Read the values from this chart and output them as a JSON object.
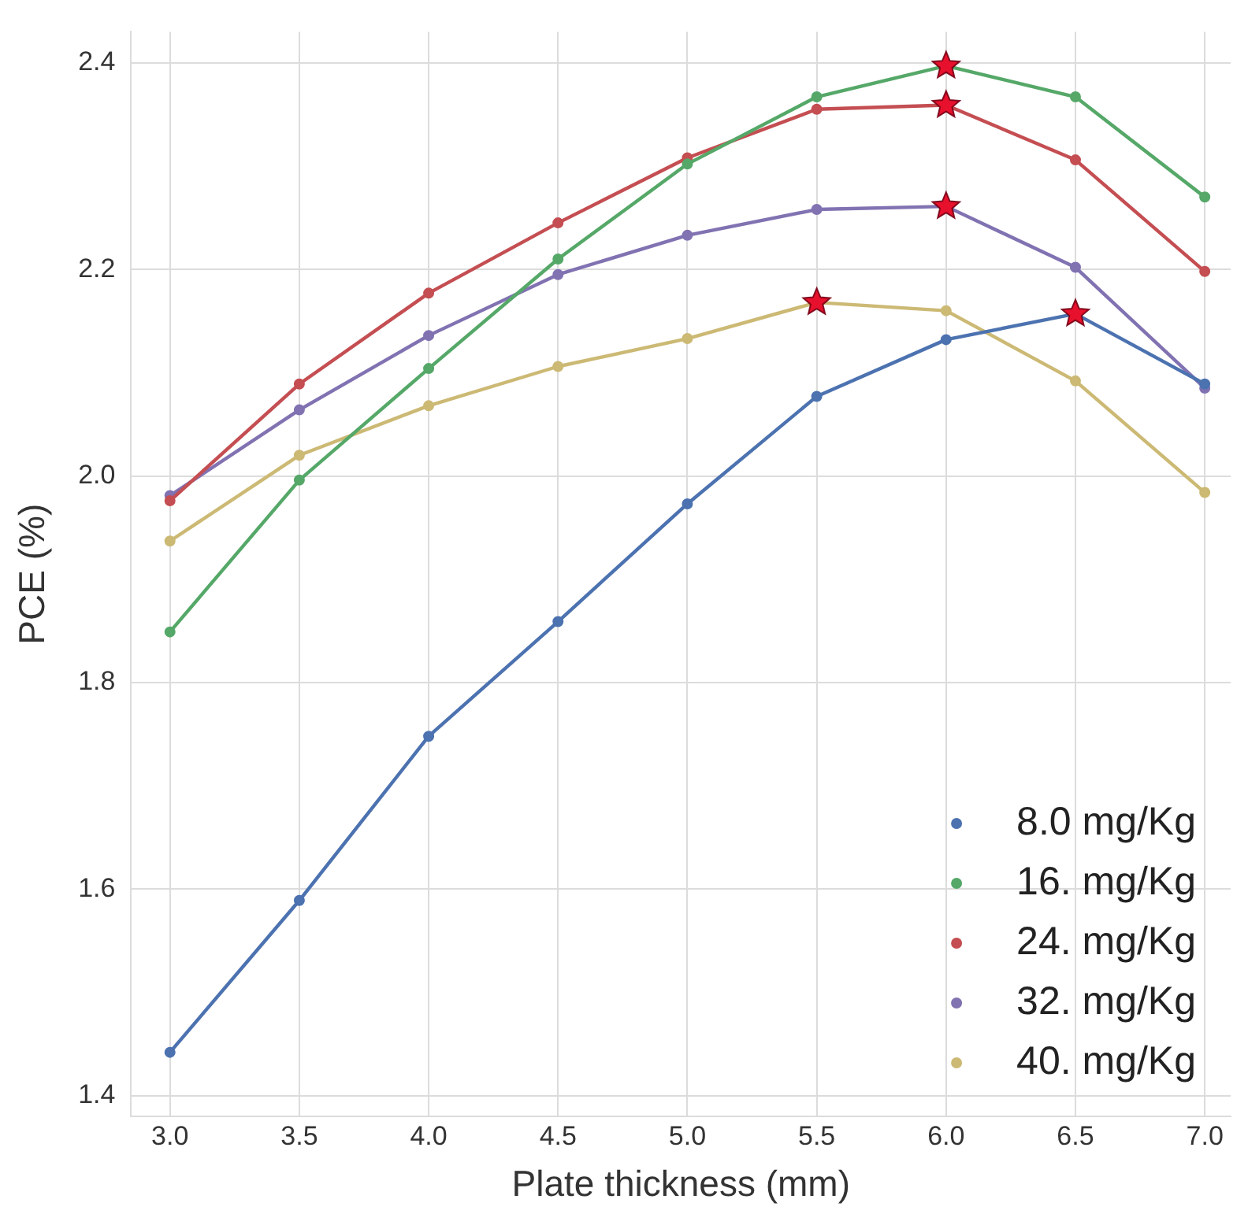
{
  "chart_data": {
    "type": "line",
    "xlabel": "Plate thickness (mm)",
    "ylabel": "PCE (%)",
    "x": [
      3.0,
      3.5,
      4.0,
      4.5,
      5.0,
      5.5,
      6.0,
      6.5,
      7.0
    ],
    "series": [
      {
        "name": "8.0 mg/Kg",
        "color": "#4c72b0",
        "values": [
          1.442,
          1.589,
          1.748,
          1.859,
          1.973,
          2.077,
          2.132,
          2.157,
          2.089
        ]
      },
      {
        "name": "16. mg/Kg",
        "color": "#55a868",
        "values": [
          1.849,
          1.996,
          2.104,
          2.21,
          2.302,
          2.367,
          2.397,
          2.367,
          2.27
        ]
      },
      {
        "name": "24. mg/Kg",
        "color": "#c44e52",
        "values": [
          1.976,
          2.089,
          2.177,
          2.245,
          2.308,
          2.355,
          2.359,
          2.306,
          2.198
        ]
      },
      {
        "name": "32. mg/Kg",
        "color": "#8172b2",
        "values": [
          1.981,
          2.064,
          2.136,
          2.195,
          2.233,
          2.258,
          2.261,
          2.202,
          2.085
        ]
      },
      {
        "name": "40. mg/Kg",
        "color": "#ccb974",
        "values": [
          1.937,
          2.02,
          2.068,
          2.106,
          2.133,
          2.168,
          2.16,
          2.092,
          1.984
        ]
      },
      {
        "type": "scatter",
        "marker": "star",
        "color": "#e8112d",
        "x": [
          6.5,
          6.0,
          6.0,
          6.0,
          5.5
        ],
        "values": [
          2.157,
          2.397,
          2.359,
          2.261,
          2.168
        ]
      }
    ],
    "xlim": [
      2.85,
      7.1
    ],
    "ylim": [
      1.38,
      2.43
    ],
    "xticks": [
      {
        "value": 3,
        "label": "3.0"
      },
      {
        "value": 3.5,
        "label": "3.5"
      },
      {
        "value": 4,
        "label": "4.0"
      },
      {
        "value": 4.5,
        "label": "4.5"
      },
      {
        "value": 5,
        "label": "5.0"
      },
      {
        "value": 5.5,
        "label": "5.5"
      },
      {
        "value": 6,
        "label": "6.0"
      },
      {
        "value": 6.5,
        "label": "6.5"
      },
      {
        "value": 7,
        "label": "7.0"
      }
    ],
    "yticks": [
      {
        "value": 1.4,
        "label": "1.4"
      },
      {
        "value": 1.6,
        "label": "1.6"
      },
      {
        "value": 1.8,
        "label": "1.8"
      },
      {
        "value": 2,
        "label": "2.0"
      },
      {
        "value": 2.2,
        "label": "2.2"
      },
      {
        "value": 2.4,
        "label": "2.4"
      }
    ],
    "grid": true,
    "legend": "bottom right",
    "marker": "circle",
    "line_style": "solid"
  }
}
